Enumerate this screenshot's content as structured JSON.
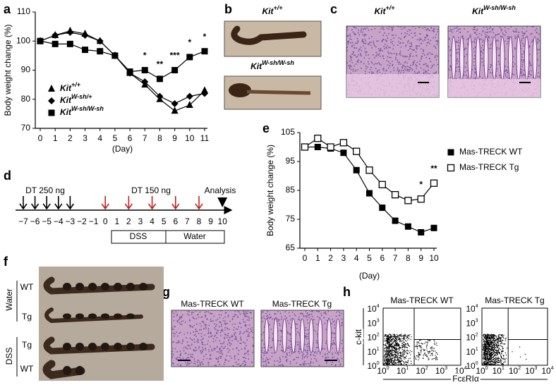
{
  "chart_data": [
    {
      "type": "line",
      "ylabel": "Body weight change (%)",
      "xlabel": "(Day)",
      "x": [
        0,
        1,
        2,
        3,
        4,
        5,
        6,
        7,
        8,
        9,
        10,
        11
      ],
      "xlim": [
        0,
        11
      ],
      "xticks": [
        0,
        1,
        2,
        3,
        4,
        5,
        6,
        7,
        8,
        9,
        10,
        11
      ],
      "ylim": [
        70,
        110
      ],
      "yticks": [
        70,
        80,
        90,
        100,
        110
      ],
      "legend": "lower left",
      "series": [
        {
          "name": "Kit",
          "name_sup": "+/+",
          "color": "#000000",
          "marker": "triangle",
          "values": [
            100,
            102,
            103.5,
            102.5,
            100,
            95,
            89,
            85,
            80,
            76,
            78,
            83
          ]
        },
        {
          "name": "Kit",
          "name_sup": "W-sh/+",
          "color": "#000000",
          "marker": "diamond",
          "values": [
            100,
            102,
            103,
            102,
            100,
            95,
            89,
            86,
            81,
            78.5,
            81,
            82
          ]
        },
        {
          "name": "Kit",
          "name_sup": "W-sh/W-sh",
          "color": "#000000",
          "marker": "square",
          "values": [
            100,
            99,
            99,
            97,
            96.5,
            95,
            89.5,
            90,
            87,
            90,
            94.5,
            96.5
          ]
        }
      ],
      "annotations": [
        {
          "x": 7,
          "text": "*"
        },
        {
          "x": 8,
          "text": "**"
        },
        {
          "x": 9,
          "text": "***"
        },
        {
          "x": 10,
          "text": "*"
        },
        {
          "x": 11,
          "text": "*"
        }
      ]
    },
    {
      "type": "line",
      "ylabel": "Body weight change (%)",
      "xlabel": "(Day)",
      "x": [
        0,
        1,
        2,
        3,
        4,
        5,
        6,
        7,
        8,
        9,
        10
      ],
      "xlim": [
        0,
        10
      ],
      "xticks": [
        0,
        1,
        2,
        3,
        4,
        5,
        6,
        7,
        8,
        9,
        10
      ],
      "ylim": [
        65,
        105
      ],
      "yticks": [
        65,
        75,
        85,
        95,
        105
      ],
      "legend": "right",
      "series": [
        {
          "name": "Mas-TRECK WT",
          "color": "#000000",
          "marker": "square",
          "values": [
            100,
            100,
            99.5,
            98,
            92,
            84,
            79,
            74.5,
            72.5,
            70.5,
            72
          ]
        },
        {
          "name": "Mas-TRECK Tg",
          "color": "#000000",
          "marker": "square-open",
          "values": [
            100,
            103,
            100,
            101.5,
            98.5,
            92,
            87,
            83.5,
            81.5,
            82,
            87.5
          ]
        }
      ],
      "annotations": [
        {
          "x": 9,
          "text": "*"
        },
        {
          "x": 10,
          "text": "**"
        }
      ]
    }
  ],
  "panels": {
    "letters": [
      "a",
      "b",
      "c",
      "d",
      "e",
      "f",
      "g",
      "h"
    ],
    "b": {
      "labels": [
        {
          "base": "Kit",
          "sup": "+/+"
        },
        {
          "base": "Kit",
          "sup": "W-sh/W-sh"
        }
      ]
    },
    "c": {
      "labels": [
        {
          "base": "Kit",
          "sup": "+/+"
        },
        {
          "base": "Kit",
          "sup": "W-sh/W-sh"
        }
      ]
    },
    "d": {
      "days": [
        "−7",
        "−6",
        "−5",
        "−4",
        "−3",
        "−2",
        "−1",
        "0",
        "1",
        "2",
        "3",
        "4",
        "5",
        "6",
        "7",
        "8",
        "9",
        "10"
      ],
      "dt_first": "DT 250 ng",
      "dt_second": "DT 150 ng",
      "analysis": "Analysis",
      "dss": "DSS",
      "water": "Water"
    },
    "f": {
      "groups": [
        "Water",
        "DSS"
      ],
      "rows": [
        "WT",
        "Tg",
        "Tg",
        "WT"
      ]
    },
    "g": {
      "titles": [
        "Mas-TRECK WT",
        "Mas-TRECK Tg"
      ]
    },
    "h": {
      "titles": [
        "Mas-TRECK WT",
        "Mas-TRECK Tg"
      ],
      "ylabel": "c-kit",
      "xlabel": "FcεRIα",
      "ticks": [
        [
          "10",
          "0"
        ],
        [
          "10",
          "1"
        ],
        [
          "10",
          "2"
        ],
        [
          "10",
          "3"
        ],
        [
          "10",
          "4"
        ]
      ]
    }
  }
}
